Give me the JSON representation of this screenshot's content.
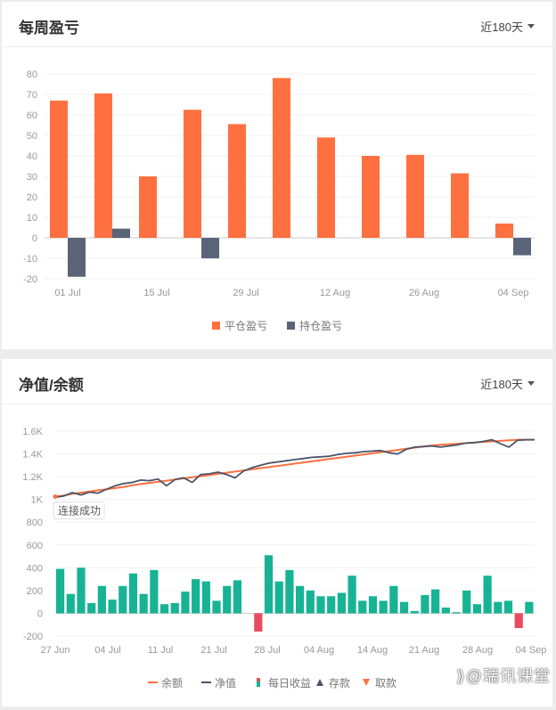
{
  "weekly": {
    "title": "每周盈亏",
    "range_label": "近180天",
    "chart_data": {
      "type": "bar",
      "ylim": [
        -20,
        80
      ],
      "y_ticks": [
        "80",
        "70",
        "60",
        "50",
        "40",
        "30",
        "20",
        "10",
        "0",
        "-10",
        "-20"
      ],
      "x_tick_labels": [
        "01 Jul",
        "15 Jul",
        "29 Jul",
        "12 Aug",
        "26 Aug",
        "04 Sep"
      ],
      "series": [
        {
          "name": "平仓盈亏",
          "color": "#ff7040",
          "values": [
            67,
            70.5,
            30,
            62.5,
            55.5,
            78,
            49,
            40,
            40.5,
            31.5,
            7
          ]
        },
        {
          "name": "持仓盈亏",
          "color": "#5a6478",
          "values": [
            -19,
            4.5,
            null,
            -10,
            null,
            null,
            null,
            null,
            null,
            null,
            -8.5
          ]
        }
      ]
    }
  },
  "equity": {
    "title": "净值/余额",
    "range_label": "近180天",
    "tooltip": "连接成功",
    "chart_data": {
      "type": "line",
      "ylim": [
        -200,
        1600
      ],
      "y_ticks": [
        "1.6K",
        "1.4K",
        "1.2K",
        "1K",
        "800",
        "600",
        "400",
        "200",
        "0",
        "-200"
      ],
      "x_tick_labels": [
        "27 Jun",
        "04 Jul",
        "11 Jul",
        "21 Jul",
        "28 Jul",
        "04 Aug",
        "14 Aug",
        "21 Aug",
        "28 Aug",
        "04 Sep"
      ],
      "series": [
        {
          "name": "余额",
          "color": "#ff7040",
          "values": [
            1025,
            1035,
            1050,
            1060,
            1070,
            1080,
            1090,
            1100,
            1110,
            1125,
            1135,
            1145,
            1155,
            1165,
            1175,
            1185,
            1195,
            1205,
            1215,
            1225,
            1235,
            1245,
            1255,
            1265,
            1275,
            1285,
            1295,
            1305,
            1315,
            1325,
            1335,
            1345,
            1355,
            1365,
            1375,
            1385,
            1395,
            1405,
            1415,
            1425,
            1435,
            1445,
            1455,
            1465,
            1475,
            1480,
            1485,
            1490,
            1495,
            1500,
            1505,
            1510,
            1515,
            1520,
            1525,
            1525,
            1525
          ]
        },
        {
          "name": "净值",
          "color": "#4a5568",
          "values": [
            1020,
            1030,
            1060,
            1040,
            1065,
            1055,
            1090,
            1120,
            1140,
            1150,
            1170,
            1165,
            1180,
            1120,
            1175,
            1190,
            1150,
            1220,
            1225,
            1240,
            1220,
            1190,
            1250,
            1280,
            1300,
            1320,
            1330,
            1340,
            1350,
            1360,
            1370,
            1375,
            1380,
            1395,
            1405,
            1410,
            1420,
            1425,
            1430,
            1410,
            1400,
            1440,
            1460,
            1465,
            1470,
            1460,
            1470,
            1480,
            1495,
            1500,
            1510,
            1525,
            1490,
            1460,
            1520,
            1525,
            1525
          ]
        },
        {
          "name": "每日收益",
          "color": "#17b394",
          "values": [
            390,
            170,
            400,
            90,
            240,
            120,
            240,
            350,
            170,
            380,
            80,
            90,
            190,
            300,
            280,
            110,
            240,
            290,
            null,
            -160,
            510,
            280,
            380,
            240,
            200,
            150,
            150,
            180,
            330,
            110,
            150,
            110,
            240,
            100,
            20,
            160,
            210,
            50,
            10,
            200,
            80,
            330,
            100,
            110,
            -130,
            100
          ]
        },
        {
          "name": "存款",
          "color": "#4a5568",
          "values": []
        },
        {
          "name": "取款",
          "color": "#ff7040",
          "values": []
        }
      ]
    }
  },
  "watermark": "⟫@瑞讯课堂"
}
